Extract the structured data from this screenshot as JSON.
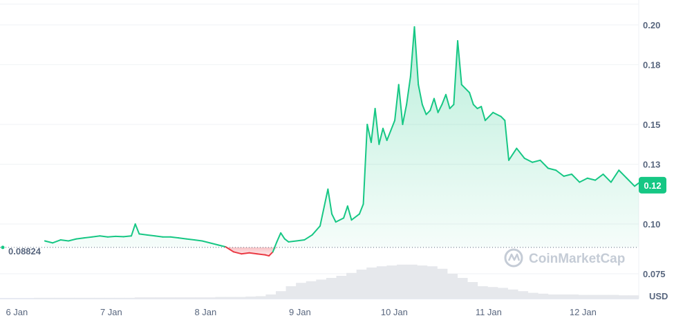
{
  "chart_data": {
    "type": "line",
    "currency": "USD",
    "x_ticks": [
      "6 Jan",
      "7 Jan",
      "8 Jan",
      "9 Jan",
      "10 Jan",
      "11 Jan",
      "12 Jan"
    ],
    "y_ticks": [
      "0.075",
      "0.10",
      "0.13",
      "0.15",
      "0.18",
      "0.20"
    ],
    "ylim": [
      0.0625,
      0.2125
    ],
    "reference_price": 0.08824,
    "reference_label": "0.08824",
    "current_price_label": "0.12",
    "current_price": 0.1195,
    "watermark": "CoinMarketCap",
    "colors": {
      "up": "#16c784",
      "down": "#ea3943",
      "grid": "#eff2f5",
      "badge": "#16c784",
      "volume": "#e6e8ec"
    },
    "series": [
      {
        "x": [
          "6 Jan 10:00",
          "6 Jan 12:00",
          "6 Jan 14:00",
          "6 Jan 16:00",
          "6 Jan 18:00",
          "6 Jan 20:00",
          "6 Jan 22:00",
          "7 Jan 00:00",
          "7 Jan 02:00",
          "7 Jan 04:00",
          "7 Jan 06:00",
          "7 Jan 08:00",
          "7 Jan 09:00",
          "7 Jan 10:00",
          "7 Jan 12:00",
          "7 Jan 14:00",
          "7 Jan 16:00",
          "7 Jan 18:00",
          "7 Jan 20:00",
          "7 Jan 22:00",
          "8 Jan 00:00",
          "8 Jan 02:00",
          "8 Jan 04:00",
          "8 Jan 06:00",
          "8 Jan 08:00",
          "8 Jan 10:00",
          "8 Jan 12:00",
          "8 Jan 14:00",
          "8 Jan 16:00",
          "8 Jan 18:00",
          "8 Jan 19:00",
          "8 Jan 20:00",
          "8 Jan 21:00",
          "8 Jan 22:00",
          "8 Jan 23:00",
          "9 Jan 00:00",
          "9 Jan 02:00",
          "9 Jan 04:00",
          "9 Jan 06:00",
          "9 Jan 08:00",
          "9 Jan 10:00",
          "9 Jan 11:00",
          "9 Jan 12:00",
          "9 Jan 14:00",
          "9 Jan 15:00",
          "9 Jan 16:00",
          "9 Jan 18:00",
          "9 Jan 19:00",
          "9 Jan 20:00",
          "9 Jan 21:00",
          "9 Jan 22:00",
          "9 Jan 23:00",
          "10 Jan 00:00",
          "10 Jan 01:00",
          "10 Jan 02:00",
          "10 Jan 03:00",
          "10 Jan 04:00",
          "10 Jan 05:00",
          "10 Jan 06:00",
          "10 Jan 07:00",
          "10 Jan 08:00",
          "10 Jan 09:00",
          "10 Jan 10:00",
          "10 Jan 11:00",
          "10 Jan 12:00",
          "10 Jan 13:00",
          "10 Jan 14:00",
          "10 Jan 15:00",
          "10 Jan 16:00",
          "10 Jan 17:00",
          "10 Jan 18:00",
          "10 Jan 19:00",
          "10 Jan 20:00",
          "10 Jan 21:00",
          "10 Jan 22:00",
          "10 Jan 23:00",
          "11 Jan 00:00",
          "11 Jan 01:00",
          "11 Jan 02:00",
          "11 Jan 04:00",
          "11 Jan 06:00",
          "11 Jan 07:00",
          "11 Jan 08:00",
          "11 Jan 10:00",
          "11 Jan 12:00",
          "11 Jan 14:00",
          "11 Jan 16:00",
          "11 Jan 18:00",
          "11 Jan 20:00",
          "11 Jan 22:00",
          "12 Jan 00:00",
          "12 Jan 02:00",
          "12 Jan 04:00",
          "12 Jan 06:00",
          "12 Jan 08:00",
          "12 Jan 10:00",
          "12 Jan 12:00",
          "12 Jan 14:00",
          "12 Jan 16:00",
          "12 Jan 18:00",
          "12 Jan 20:00",
          "12 Jan 22:00",
          "12 Jan 23:30"
        ],
        "y": [
          0.0915,
          0.0905,
          0.092,
          0.0915,
          0.0925,
          0.093,
          0.0935,
          0.094,
          0.0935,
          0.0938,
          0.0936,
          0.094,
          0.1,
          0.095,
          0.0945,
          0.094,
          0.0935,
          0.0935,
          0.093,
          0.0925,
          0.092,
          0.0915,
          0.0905,
          0.0895,
          0.0885,
          0.086,
          0.085,
          0.0855,
          0.085,
          0.0845,
          0.084,
          0.086,
          0.091,
          0.0955,
          0.0925,
          0.091,
          0.0915,
          0.092,
          0.0945,
          0.099,
          0.1175,
          0.105,
          0.101,
          0.103,
          0.109,
          0.102,
          0.105,
          0.11,
          0.15,
          0.141,
          0.158,
          0.14,
          0.148,
          0.142,
          0.147,
          0.152,
          0.17,
          0.15,
          0.16,
          0.174,
          0.199,
          0.17,
          0.16,
          0.155,
          0.157,
          0.163,
          0.156,
          0.16,
          0.165,
          0.158,
          0.16,
          0.192,
          0.17,
          0.168,
          0.166,
          0.16,
          0.158,
          0.159,
          0.152,
          0.156,
          0.154,
          0.152,
          0.132,
          0.138,
          0.133,
          0.131,
          0.132,
          0.128,
          0.127,
          0.124,
          0.125,
          0.121,
          0.123,
          0.122,
          0.125,
          0.121,
          0.127,
          0.123,
          0.119,
          0.122,
          0.12,
          0.1205,
          0.1195
        ]
      }
    ],
    "volume": [
      0.02,
      0.02,
      0.02,
      0.02,
      0.02,
      0.02,
      0.02,
      0.02,
      0.02,
      0.02,
      0.03,
      0.03,
      0.03,
      0.03,
      0.03,
      0.03,
      0.03,
      0.03,
      0.04,
      0.04,
      0.04,
      0.05,
      0.06,
      0.1,
      0.18,
      0.3,
      0.38,
      0.42,
      0.46,
      0.5,
      0.55,
      0.62,
      0.7,
      0.75,
      0.78,
      0.8,
      0.82,
      0.82,
      0.8,
      0.78,
      0.72,
      0.6,
      0.5,
      0.4,
      0.3,
      0.28,
      0.26,
      0.22,
      0.18,
      0.14,
      0.12,
      0.1,
      0.1,
      0.1,
      0.09,
      0.09,
      0.09,
      0.09,
      0.08,
      0.08
    ]
  }
}
